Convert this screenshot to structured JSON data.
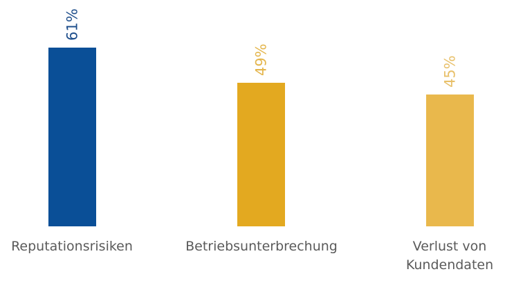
{
  "chart_data": {
    "type": "bar",
    "categories": [
      [
        "Reputationsrisiken"
      ],
      [
        "Betriebsunterbrechung"
      ],
      [
        "Verlust von",
        "Kundendaten"
      ]
    ],
    "values": [
      61,
      49,
      45
    ],
    "value_labels": [
      "61%",
      "49%",
      "45%"
    ],
    "unit": "%",
    "colors": [
      "#0a4f97",
      "#e3a920",
      "#e9b84c"
    ],
    "label_colors": [
      "#1f4f8c",
      "#e4b64d",
      "#e8c06a"
    ],
    "ylim": [
      0,
      61
    ],
    "grid": false,
    "title": "",
    "xlabel": "",
    "ylabel": ""
  }
}
